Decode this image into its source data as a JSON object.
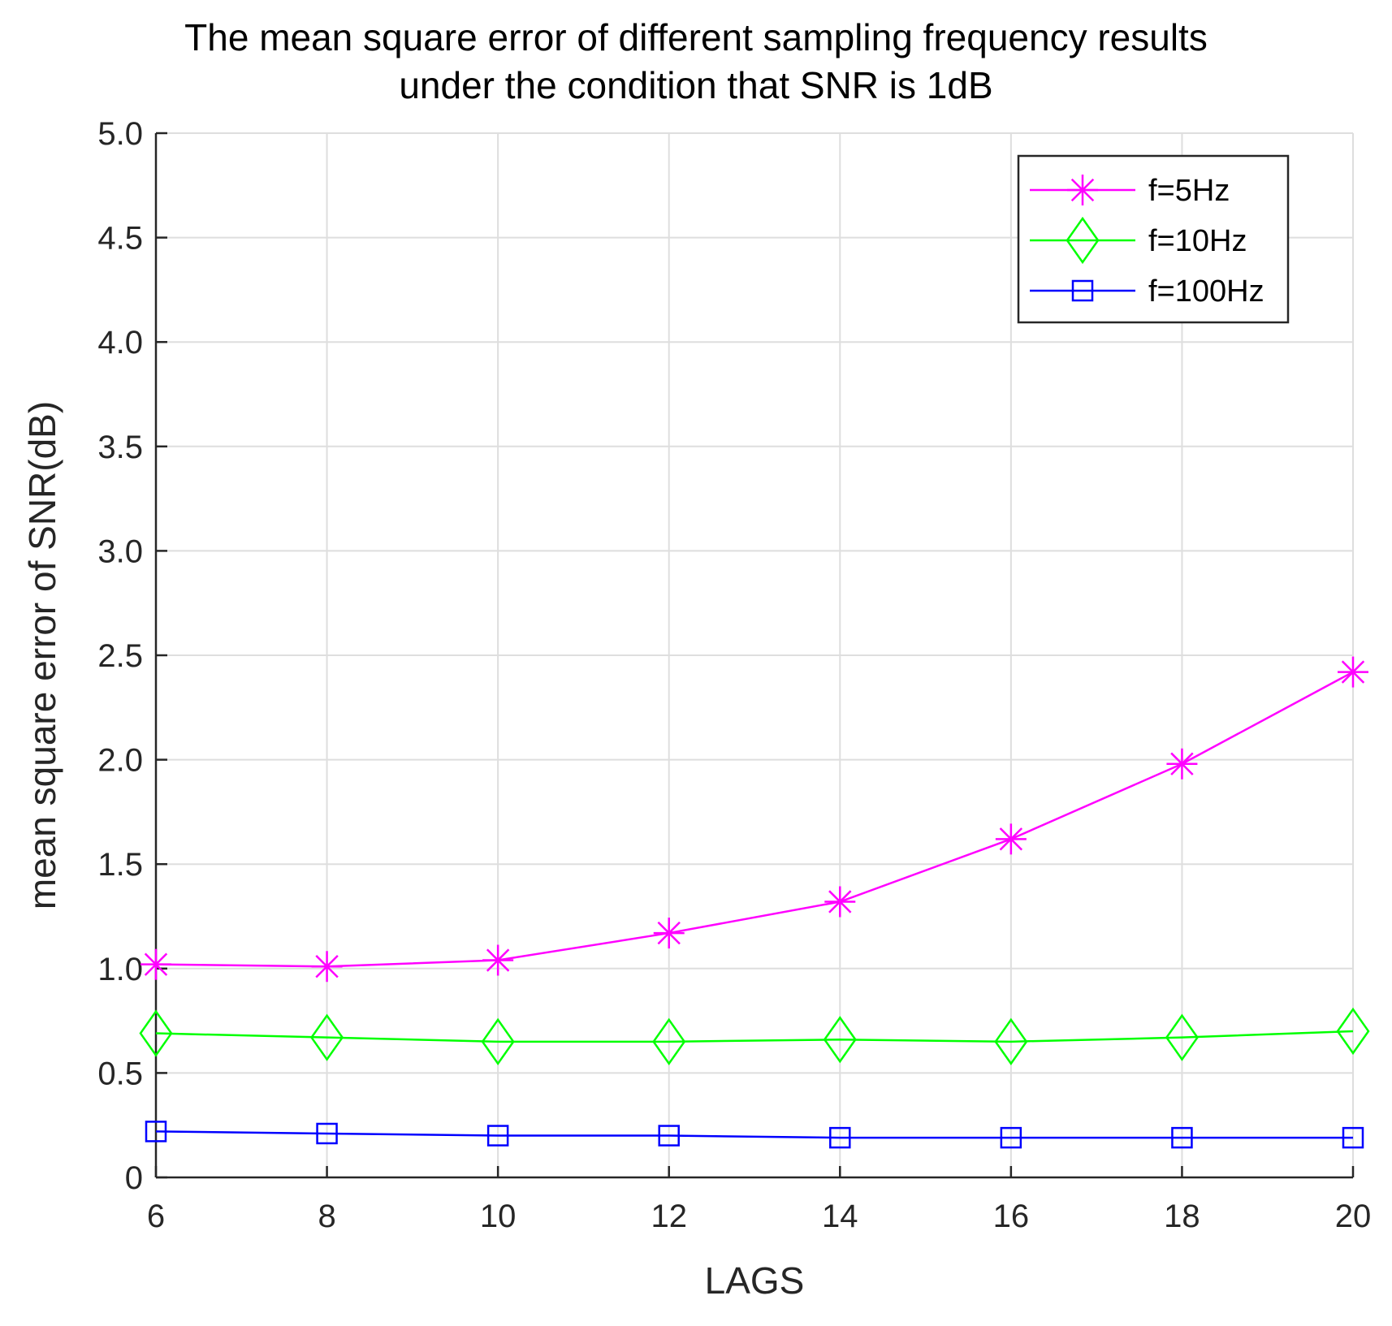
{
  "chart_data": {
    "type": "line",
    "title": [
      "The mean square error of different sampling frequency results",
      "under the condition that SNR is 1dB"
    ],
    "xlabel": "LAGS",
    "ylabel": "mean square error of SNR(dB)",
    "xlim": [
      6,
      20
    ],
    "ylim": [
      0,
      5.0
    ],
    "x_ticks": [
      6,
      8,
      10,
      12,
      14,
      16,
      18,
      20
    ],
    "x_tick_labels": [
      "6",
      "8",
      "10",
      "12",
      "14",
      "16",
      "18",
      "20"
    ],
    "y_ticks": [
      0,
      0.5,
      1.0,
      1.5,
      2.0,
      2.5,
      3.0,
      3.5,
      4.0,
      4.5,
      5.0
    ],
    "y_tick_labels": [
      "0",
      "0.5",
      "1.0",
      "1.5",
      "2.0",
      "2.5",
      "3.0",
      "3.5",
      "4.0",
      "4.5",
      "5.0"
    ],
    "grid": true,
    "legend_position": "top-right",
    "x": [
      6,
      8,
      10,
      12,
      14,
      16,
      18,
      20
    ],
    "series": [
      {
        "name": "f=5Hz",
        "color": "#ff00ff",
        "marker": "asterisk",
        "values": [
          1.02,
          1.01,
          1.04,
          1.17,
          1.32,
          1.62,
          1.98,
          2.42
        ]
      },
      {
        "name": "f=10Hz",
        "color": "#00ff00",
        "marker": "diamond",
        "values": [
          0.69,
          0.67,
          0.65,
          0.65,
          0.66,
          0.65,
          0.67,
          0.7
        ]
      },
      {
        "name": "f=100Hz",
        "color": "#0000ff",
        "marker": "square",
        "values": [
          0.22,
          0.21,
          0.2,
          0.2,
          0.19,
          0.19,
          0.19,
          0.19
        ]
      }
    ]
  }
}
